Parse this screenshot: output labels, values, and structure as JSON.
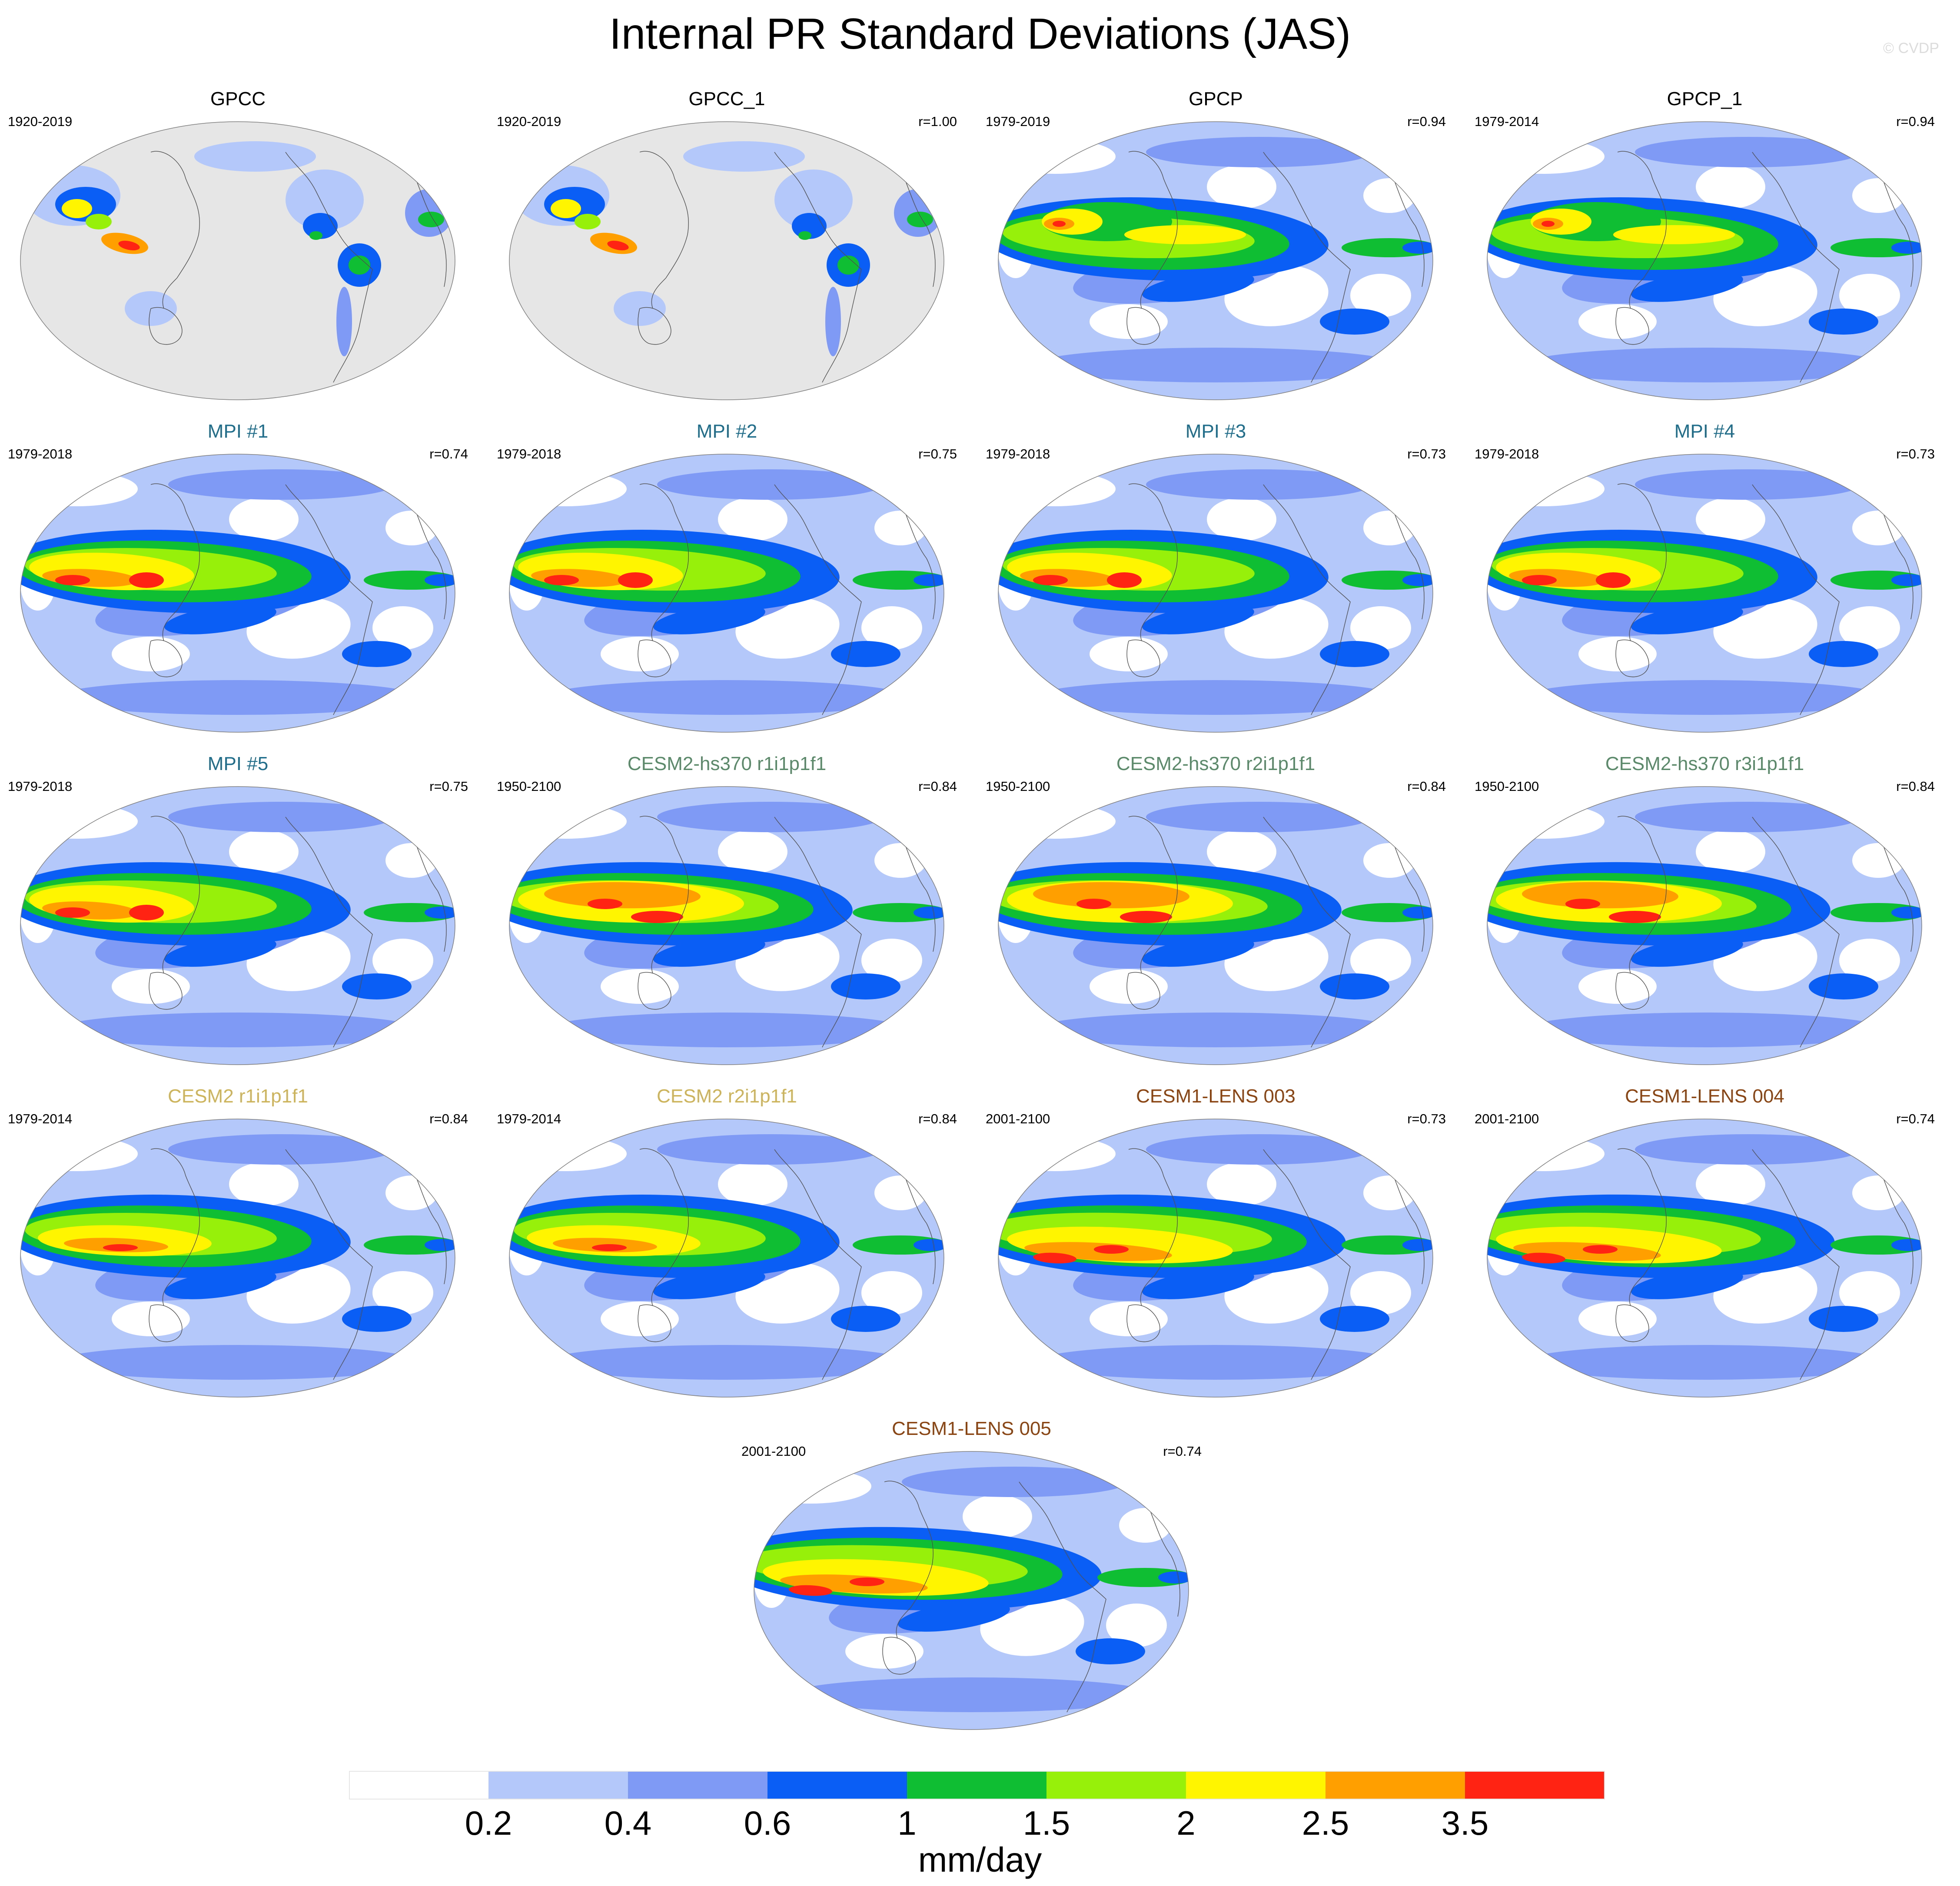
{
  "title": "Internal PR Standard Deviations (JAS)",
  "copyright": "© CVDP",
  "panels": [
    {
      "title": "GPCC",
      "period": "1920-2019",
      "r": "",
      "title_color": "#000000",
      "style": "land"
    },
    {
      "title": "GPCC_1",
      "period": "1920-2019",
      "r": "r=1.00",
      "title_color": "#000000",
      "style": "land"
    },
    {
      "title": "GPCP",
      "period": "1979-2019",
      "r": "r=0.94",
      "title_color": "#000000",
      "style": "obs"
    },
    {
      "title": "GPCP_1",
      "period": "1979-2014",
      "r": "r=0.94",
      "title_color": "#000000",
      "style": "obs"
    },
    {
      "title": "MPI #1",
      "period": "1979-2018",
      "r": "r=0.74",
      "title_color": "#1f6e8c",
      "style": "mpi"
    },
    {
      "title": "MPI #2",
      "period": "1979-2018",
      "r": "r=0.75",
      "title_color": "#1f6e8c",
      "style": "mpi"
    },
    {
      "title": "MPI #3",
      "period": "1979-2018",
      "r": "r=0.73",
      "title_color": "#1f6e8c",
      "style": "mpi"
    },
    {
      "title": "MPI #4",
      "period": "1979-2018",
      "r": "r=0.73",
      "title_color": "#1f6e8c",
      "style": "mpi"
    },
    {
      "title": "MPI #5",
      "period": "1979-2018",
      "r": "r=0.75",
      "title_color": "#1f6e8c",
      "style": "mpi"
    },
    {
      "title": "CESM2-hs370 r1i1p1f1",
      "period": "1950-2100",
      "r": "r=0.84",
      "title_color": "#5a8a6a",
      "style": "hs370"
    },
    {
      "title": "CESM2-hs370 r2i1p1f1",
      "period": "1950-2100",
      "r": "r=0.84",
      "title_color": "#5a8a6a",
      "style": "hs370"
    },
    {
      "title": "CESM2-hs370 r3i1p1f1",
      "period": "1950-2100",
      "r": "r=0.84",
      "title_color": "#5a8a6a",
      "style": "hs370"
    },
    {
      "title": "CESM2 r1i1p1f1",
      "period": "1979-2014",
      "r": "r=0.84",
      "title_color": "#cdb45a",
      "style": "cesm2"
    },
    {
      "title": "CESM2 r2i1p1f1",
      "period": "1979-2014",
      "r": "r=0.84",
      "title_color": "#cdb45a",
      "style": "cesm2"
    },
    {
      "title": "CESM1-LENS 003",
      "period": "2001-2100",
      "r": "r=0.73",
      "title_color": "#8b4513",
      "style": "lens"
    },
    {
      "title": "CESM1-LENS 004",
      "period": "2001-2100",
      "r": "r=0.74",
      "title_color": "#8b4513",
      "style": "lens"
    },
    {
      "title": "CESM1-LENS 005",
      "period": "2001-2100",
      "r": "r=0.74",
      "title_color": "#8b4513",
      "style": "lens"
    }
  ],
  "colorbar": {
    "units": "mm/day",
    "levels": [
      "0.2",
      "0.4",
      "0.6",
      "1",
      "1.5",
      "2",
      "2.5",
      "3.5"
    ],
    "colors": [
      "#ffffff",
      "#b4c8fa",
      "#7f9af5",
      "#0a5ef5",
      "#0fbe32",
      "#96f00a",
      "#fff500",
      "#ffa000",
      "#ff2314"
    ]
  },
  "map_style": {
    "land_mask_color": "#e6e6e6",
    "coast_color": "#505050"
  }
}
